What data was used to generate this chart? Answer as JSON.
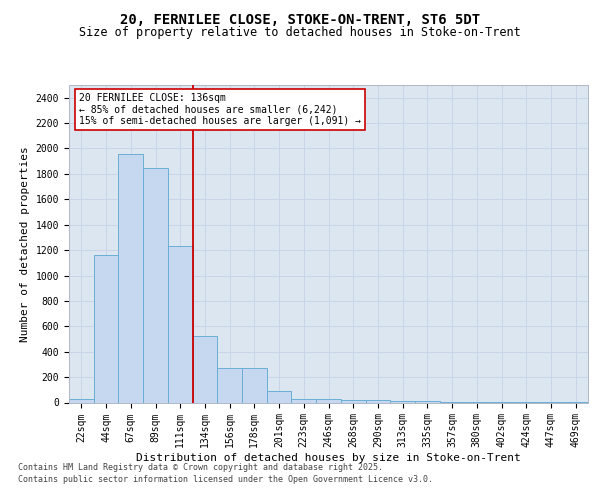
{
  "title_line1": "20, FERNILEE CLOSE, STOKE-ON-TRENT, ST6 5DT",
  "title_line2": "Size of property relative to detached houses in Stoke-on-Trent",
  "xlabel": "Distribution of detached houses by size in Stoke-on-Trent",
  "ylabel": "Number of detached properties",
  "bins": [
    "22sqm",
    "44sqm",
    "67sqm",
    "89sqm",
    "111sqm",
    "134sqm",
    "156sqm",
    "178sqm",
    "201sqm",
    "223sqm",
    "246sqm",
    "268sqm",
    "290sqm",
    "313sqm",
    "335sqm",
    "357sqm",
    "380sqm",
    "402sqm",
    "424sqm",
    "447sqm",
    "469sqm"
  ],
  "values": [
    30,
    1160,
    1960,
    1850,
    1230,
    520,
    270,
    270,
    90,
    30,
    30,
    20,
    20,
    10,
    10,
    5,
    5,
    5,
    5,
    5,
    5
  ],
  "bar_color": "#c5d8ef",
  "bar_edge_color": "#6baed6",
  "vline_color": "#cc0000",
  "annotation_text": "20 FERNILEE CLOSE: 136sqm\n← 85% of detached houses are smaller (6,242)\n15% of semi-detached houses are larger (1,091) →",
  "annotation_box_facecolor": "#ffffff",
  "annotation_box_edgecolor": "#cc0000",
  "ylim": [
    0,
    2500
  ],
  "yticks": [
    0,
    200,
    400,
    600,
    800,
    1000,
    1200,
    1400,
    1600,
    1800,
    2000,
    2200,
    2400
  ],
  "grid_color": "#c8d4e8",
  "background_color": "#dce6f0",
  "footer_line1": "Contains HM Land Registry data © Crown copyright and database right 2025.",
  "footer_line2": "Contains public sector information licensed under the Open Government Licence v3.0.",
  "title_fontsize": 10,
  "subtitle_fontsize": 8.5,
  "axis_label_fontsize": 8,
  "tick_fontsize": 7,
  "annotation_fontsize": 7,
  "footer_fontsize": 6
}
